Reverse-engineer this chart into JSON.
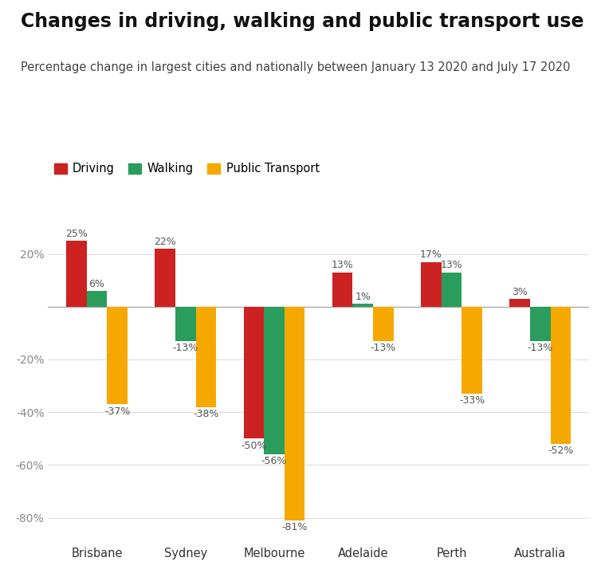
{
  "title": "Changes in driving, walking and public transport use",
  "subtitle": "Percentage change in largest cities and nationally between January 13 2020 and July 17 2020",
  "categories": [
    "Brisbane",
    "Sydney",
    "Melbourne",
    "Adelaide",
    "Perth",
    "Australia"
  ],
  "driving": [
    25,
    22,
    -50,
    13,
    17,
    3
  ],
  "walking": [
    6,
    -13,
    -56,
    1,
    13,
    -13
  ],
  "public_transport": [
    -37,
    -38,
    -81,
    -13,
    -33,
    -52
  ],
  "driving_color": "#cc2222",
  "walking_color": "#2a9d5c",
  "transport_color": "#f5a800",
  "legend_labels": [
    "Driving",
    "Walking",
    "Public Transport"
  ],
  "ylim": [
    -90,
    32
  ],
  "yticks": [
    -80,
    -60,
    -40,
    -20,
    0,
    20
  ],
  "ytick_labels": [
    "-80%",
    "-60%",
    "-40%",
    "-20%",
    "",
    "20%"
  ],
  "background_color": "#ffffff",
  "title_fontsize": 17,
  "subtitle_fontsize": 10.5,
  "bar_width": 0.23,
  "label_fontsize": 9,
  "zero_line_color": "#aaaaaa",
  "grid_color": "#dddddd",
  "tick_label_color": "#888888",
  "axis_label_color": "#333333"
}
